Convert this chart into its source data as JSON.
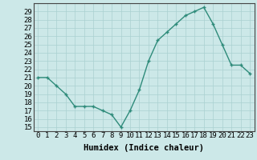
{
  "xlabel": "Humidex (Indice chaleur)",
  "x": [
    0,
    1,
    2,
    3,
    4,
    5,
    6,
    7,
    8,
    9,
    10,
    11,
    12,
    13,
    14,
    15,
    16,
    17,
    18,
    19,
    20,
    21,
    22,
    23
  ],
  "y": [
    21,
    21,
    20,
    19,
    17.5,
    17.5,
    17.5,
    17,
    16.5,
    15,
    17,
    19.5,
    23,
    25.5,
    26.5,
    27.5,
    28.5,
    29,
    29.5,
    27.5,
    25,
    22.5,
    22.5,
    21.5
  ],
  "ylim": [
    14.5,
    30
  ],
  "xlim": [
    -0.5,
    23.5
  ],
  "yticks": [
    15,
    16,
    17,
    18,
    19,
    20,
    21,
    22,
    23,
    24,
    25,
    26,
    27,
    28,
    29
  ],
  "xticks": [
    0,
    1,
    2,
    3,
    4,
    5,
    6,
    7,
    8,
    9,
    10,
    11,
    12,
    13,
    14,
    15,
    16,
    17,
    18,
    19,
    20,
    21,
    22,
    23
  ],
  "line_color": "#2e8b7a",
  "marker_color": "#2e8b7a",
  "bg_color": "#cce8e8",
  "grid_color": "#aad0d0",
  "axis_label_fontsize": 7.5,
  "tick_fontsize": 6.5
}
